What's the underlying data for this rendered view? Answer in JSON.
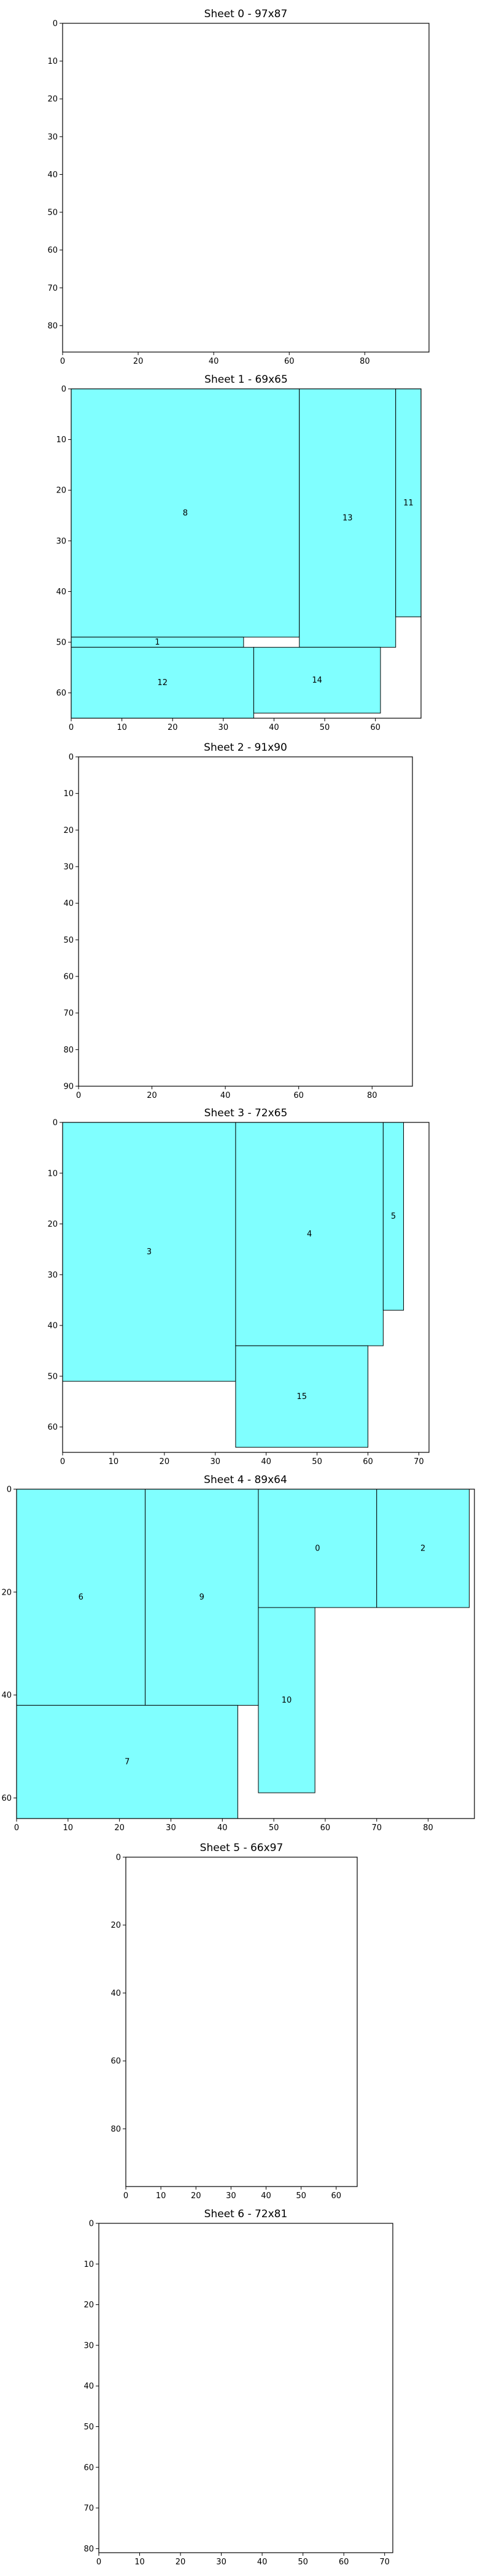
{
  "colors": {
    "fill": "#80ffff",
    "stroke": "#000000",
    "background": "#ffffff"
  },
  "chart_data": [
    {
      "type": "rect-layout",
      "title": "Sheet 0 - 97x87",
      "xlim": [
        0,
        97
      ],
      "ylim": [
        0,
        87
      ],
      "y_inverted": true,
      "xticks": [
        0,
        20,
        40,
        60,
        80
      ],
      "yticks": [
        0,
        10,
        20,
        30,
        40,
        50,
        60,
        70,
        80
      ],
      "grid": false,
      "rects": []
    },
    {
      "type": "rect-layout",
      "title": "Sheet 1 - 69x65",
      "xlim": [
        0,
        69
      ],
      "ylim": [
        0,
        65
      ],
      "y_inverted": true,
      "xticks": [
        0,
        10,
        20,
        30,
        40,
        50,
        60
      ],
      "yticks": [
        0,
        10,
        20,
        30,
        40,
        50,
        60
      ],
      "grid": false,
      "rects": [
        {
          "label": "8",
          "x": 0,
          "y": 0,
          "w": 45,
          "h": 49
        },
        {
          "label": "1",
          "x": 0,
          "y": 49,
          "w": 34,
          "h": 2
        },
        {
          "label": "12",
          "x": 0,
          "y": 51,
          "w": 36,
          "h": 14
        },
        {
          "label": "13",
          "x": 45,
          "y": 0,
          "w": 19,
          "h": 51
        },
        {
          "label": "11",
          "x": 64,
          "y": 0,
          "w": 5,
          "h": 45
        },
        {
          "label": "14",
          "x": 36,
          "y": 51,
          "w": 25,
          "h": 13
        }
      ]
    },
    {
      "type": "rect-layout",
      "title": "Sheet 2 - 91x90",
      "xlim": [
        0,
        91
      ],
      "ylim": [
        0,
        90
      ],
      "y_inverted": true,
      "xticks": [
        0,
        20,
        40,
        60,
        80
      ],
      "yticks": [
        0,
        10,
        20,
        30,
        40,
        50,
        60,
        70,
        80,
        90
      ],
      "grid": false,
      "rects": []
    },
    {
      "type": "rect-layout",
      "title": "Sheet 3 - 72x65",
      "xlim": [
        0,
        72
      ],
      "ylim": [
        0,
        65
      ],
      "y_inverted": true,
      "xticks": [
        0,
        10,
        20,
        30,
        40,
        50,
        60,
        70
      ],
      "yticks": [
        0,
        10,
        20,
        30,
        40,
        50,
        60
      ],
      "grid": false,
      "rects": [
        {
          "label": "3",
          "x": 0,
          "y": 0,
          "w": 34,
          "h": 51
        },
        {
          "label": "4",
          "x": 34,
          "y": 0,
          "w": 29,
          "h": 44
        },
        {
          "label": "5",
          "x": 63,
          "y": 0,
          "w": 4,
          "h": 37
        },
        {
          "label": "15",
          "x": 34,
          "y": 44,
          "w": 26,
          "h": 20
        }
      ]
    },
    {
      "type": "rect-layout",
      "title": "Sheet 4 - 89x64",
      "xlim": [
        0,
        89
      ],
      "ylim": [
        0,
        64
      ],
      "y_inverted": true,
      "xticks": [
        0,
        10,
        20,
        30,
        40,
        50,
        60,
        70,
        80
      ],
      "yticks": [
        0,
        20,
        40,
        60
      ],
      "grid": false,
      "rects": [
        {
          "label": "6",
          "x": 0,
          "y": 0,
          "w": 25,
          "h": 42
        },
        {
          "label": "9",
          "x": 25,
          "y": 0,
          "w": 22,
          "h": 42
        },
        {
          "label": "0",
          "x": 47,
          "y": 0,
          "w": 23,
          "h": 23
        },
        {
          "label": "2",
          "x": 70,
          "y": 0,
          "w": 18,
          "h": 23
        },
        {
          "label": "10",
          "x": 47,
          "y": 23,
          "w": 11,
          "h": 36
        },
        {
          "label": "7",
          "x": 0,
          "y": 42,
          "w": 43,
          "h": 22
        }
      ]
    },
    {
      "type": "rect-layout",
      "title": "Sheet 5 - 66x97",
      "xlim": [
        0,
        66
      ],
      "ylim": [
        0,
        97
      ],
      "y_inverted": true,
      "xticks": [
        0,
        10,
        20,
        30,
        40,
        50,
        60
      ],
      "yticks": [
        0,
        20,
        40,
        60,
        80
      ],
      "grid": false,
      "rects": []
    },
    {
      "type": "rect-layout",
      "title": "Sheet 6 - 72x81",
      "xlim": [
        0,
        72
      ],
      "ylim": [
        0,
        81
      ],
      "y_inverted": true,
      "xticks": [
        0,
        10,
        20,
        30,
        40,
        50,
        60,
        70
      ],
      "yticks": [
        0,
        10,
        20,
        30,
        40,
        50,
        60,
        70,
        80
      ],
      "grid": false,
      "rects": []
    }
  ]
}
